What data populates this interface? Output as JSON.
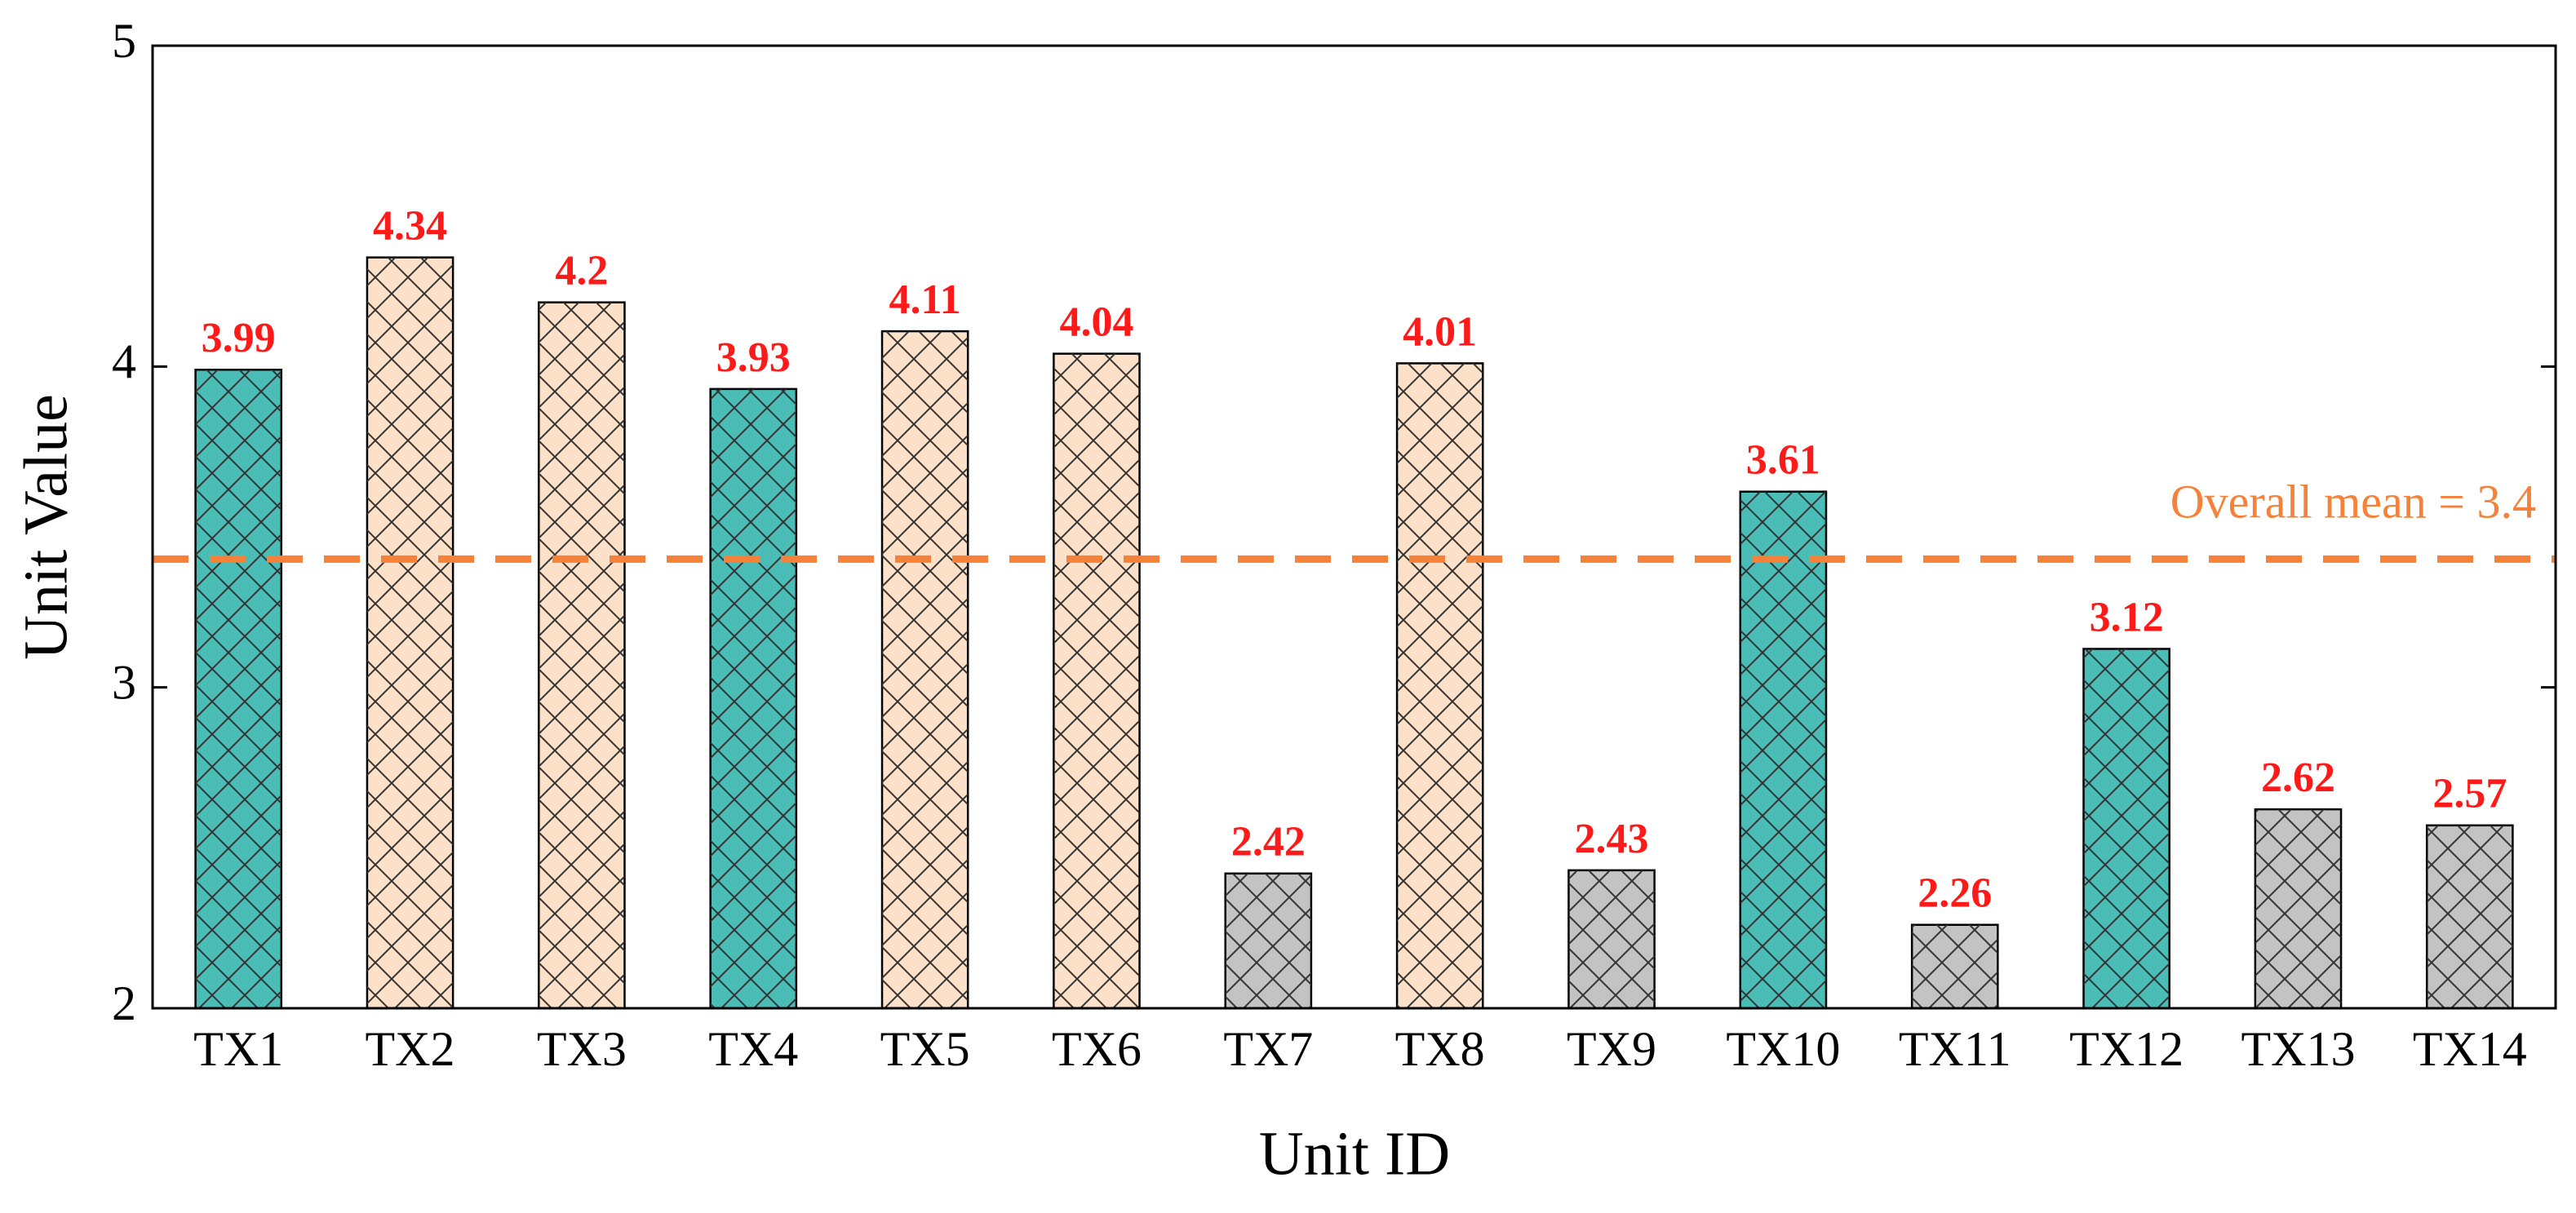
{
  "chart_data": {
    "type": "bar",
    "x_label": "Unit ID",
    "y_label": "Unit Value",
    "categories": [
      "TX1",
      "TX2",
      "TX3",
      "TX4",
      "TX5",
      "TX6",
      "TX7",
      "TX8",
      "TX9",
      "TX10",
      "TX11",
      "TX12",
      "TX13",
      "TX14"
    ],
    "values": [
      3.99,
      4.34,
      4.2,
      3.93,
      4.11,
      4.04,
      2.42,
      4.01,
      2.43,
      3.61,
      2.26,
      3.12,
      2.62,
      2.57
    ],
    "colors": [
      "#4bbdb7",
      "#fde0c8",
      "#fde0c8",
      "#4bbdb7",
      "#fde0c8",
      "#fde0c8",
      "#c3c3c3",
      "#fde0c8",
      "#c3c3c3",
      "#4bbdb7",
      "#c3c3c3",
      "#4bbdb7",
      "#c3c3c3",
      "#c3c3c3"
    ],
    "value_label_color": "#ff1a1a",
    "ylim": [
      2,
      5
    ],
    "yticks": [
      2,
      3,
      4,
      5
    ],
    "mean_line": {
      "value": 3.4,
      "label": "Overall mean = 3.4",
      "color": "#f5823a"
    }
  }
}
